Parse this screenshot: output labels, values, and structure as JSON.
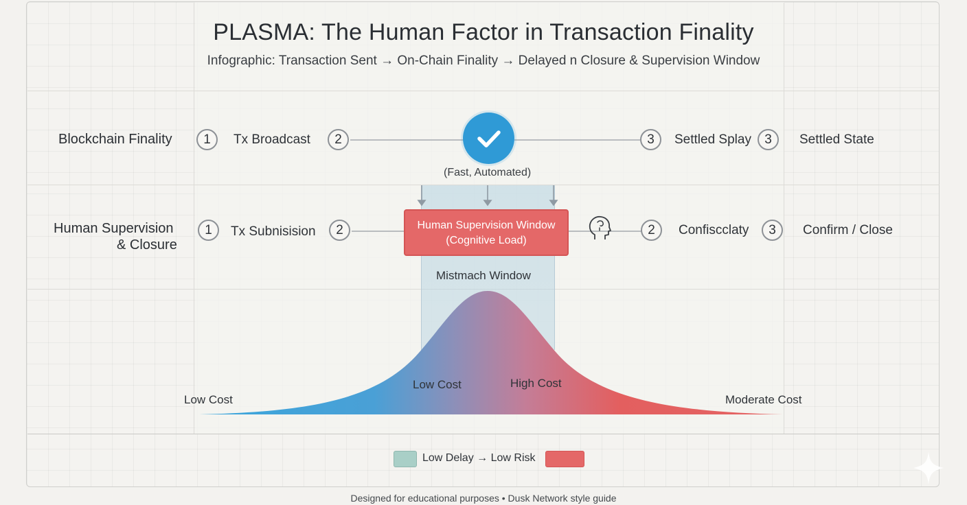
{
  "title": "PLASMA: The Human Factor in Transaction Finality",
  "subtitle": "Infographic: Transaction Sent → On-Chain Finality → Delayed n Closure & Supervision Window",
  "rows": {
    "blockchain": {
      "label": "Blockchain Finality",
      "steps": [
        {
          "num": "1",
          "text": "Tx Broadcast"
        },
        {
          "num": "2",
          "text": ""
        },
        {
          "num": "3",
          "text": "Settled Splay"
        },
        {
          "num": "3",
          "text": "Settled State"
        }
      ],
      "check_note": "(Fast, Automated)"
    },
    "human": {
      "label_line1": "Human Supervision",
      "label_line2": "& Closure",
      "steps": [
        {
          "num": "1",
          "text": "Tx Subnisision"
        },
        {
          "num": "2",
          "text": ""
        },
        {
          "num": "2",
          "text": "Confiscclaty"
        },
        {
          "num": "3",
          "text": "Confirm / Close"
        }
      ],
      "window_box_line1": "Human Supervision Window",
      "window_box_line2": "(Cognitive Load)"
    }
  },
  "mismatch_label": "Mistmach Window",
  "curve_labels": {
    "left": "Low Cost",
    "inner_left": "Low Cost",
    "inner_right": "High Cost",
    "right": "Moderate Cost"
  },
  "legend": {
    "item1_label": "Low Delay → Low Risk",
    "item1_color": "#a9cfc7",
    "item2_color": "#e46868"
  },
  "footer": "Designed for educational purposes • Dusk Network style guide",
  "colors": {
    "accent_blue": "#2f9ad6",
    "accent_red": "#e46868",
    "curve_start": "#3aa6dc",
    "curve_end": "#e35f5f"
  }
}
